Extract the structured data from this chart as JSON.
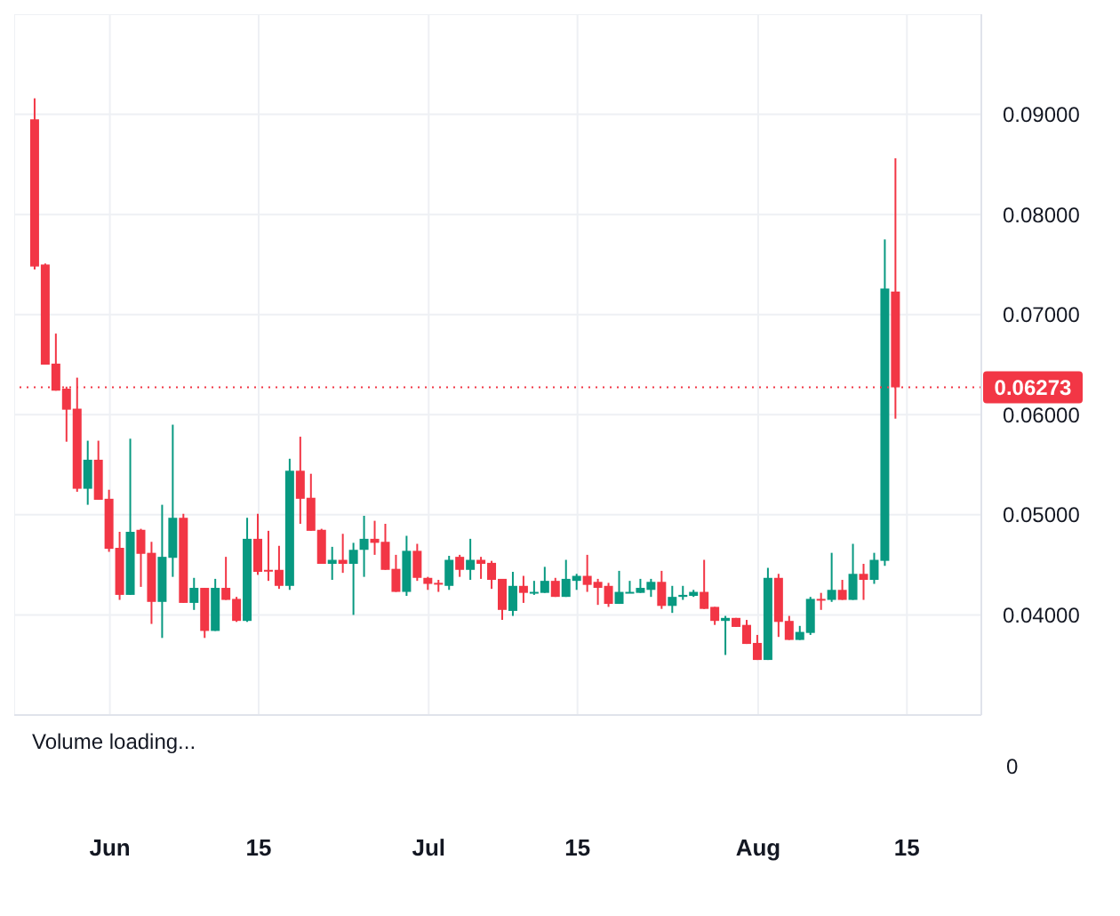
{
  "chart_data": {
    "type": "candlestick",
    "x": [
      "--05-25",
      "--05-26",
      "--05-27",
      "--05-28",
      "--05-29",
      "--05-30",
      "--05-31",
      "--06-01",
      "--06-02",
      "--06-03",
      "--06-04",
      "--06-05",
      "--06-06",
      "--06-07",
      "--06-08",
      "--06-09",
      "--06-10",
      "--06-11",
      "--06-12",
      "--06-13",
      "--06-14",
      "--06-15",
      "--06-16",
      "--06-17",
      "--06-18",
      "--06-19",
      "--06-20",
      "--06-21",
      "--06-22",
      "--06-23",
      "--06-24",
      "--06-25",
      "--06-26",
      "--06-27",
      "--06-28",
      "--06-29",
      "--06-30",
      "--07-01",
      "--07-02",
      "--07-03",
      "--07-04",
      "--07-05",
      "--07-06",
      "--07-07",
      "--07-08",
      "--07-09",
      "--07-10",
      "--07-11",
      "--07-12",
      "--07-13",
      "--07-14",
      "--07-15",
      "--07-16",
      "--07-17",
      "--07-18",
      "--07-19",
      "--07-20",
      "--07-21",
      "--07-22",
      "--07-23",
      "--07-24",
      "--07-25",
      "--07-26",
      "--07-27",
      "--07-28",
      "--07-29",
      "--07-30",
      "--07-31",
      "--08-01",
      "--08-02",
      "--08-03",
      "--08-04",
      "--08-05",
      "--08-06",
      "--08-07",
      "--08-08",
      "--08-09",
      "--08-10",
      "--08-11",
      "--08-12",
      "--08-13",
      "--08-14"
    ],
    "ohlc": [
      [
        0.0895,
        0.0916,
        0.0745,
        0.0748
      ],
      [
        0.075,
        0.0751,
        0.065,
        0.065
      ],
      [
        0.0651,
        0.0681,
        0.0624,
        0.0624
      ],
      [
        0.0626,
        0.0628,
        0.0573,
        0.0605
      ],
      [
        0.0606,
        0.0637,
        0.0523,
        0.0526
      ],
      [
        0.0526,
        0.0574,
        0.051,
        0.0555
      ],
      [
        0.0555,
        0.0574,
        0.0515,
        0.0515
      ],
      [
        0.0516,
        0.0525,
        0.0463,
        0.0466
      ],
      [
        0.0467,
        0.0483,
        0.0415,
        0.042
      ],
      [
        0.042,
        0.0576,
        0.042,
        0.0483
      ],
      [
        0.0485,
        0.0486,
        0.0428,
        0.0461
      ],
      [
        0.0462,
        0.0473,
        0.0391,
        0.0413
      ],
      [
        0.0413,
        0.051,
        0.0377,
        0.0458
      ],
      [
        0.0457,
        0.059,
        0.0438,
        0.0497
      ],
      [
        0.0497,
        0.0501,
        0.0412,
        0.0412
      ],
      [
        0.0412,
        0.0437,
        0.0405,
        0.0427
      ],
      [
        0.0427,
        0.0427,
        0.0377,
        0.0384
      ],
      [
        0.0384,
        0.0436,
        0.0384,
        0.0427
      ],
      [
        0.0427,
        0.0458,
        0.0415,
        0.0415
      ],
      [
        0.0416,
        0.0418,
        0.0393,
        0.0394
      ],
      [
        0.0394,
        0.0497,
        0.0393,
        0.0476
      ],
      [
        0.0476,
        0.0501,
        0.044,
        0.0443
      ],
      [
        0.0445,
        0.0484,
        0.0434,
        0.0444
      ],
      [
        0.0445,
        0.0469,
        0.0426,
        0.0429
      ],
      [
        0.0429,
        0.0556,
        0.0425,
        0.0544
      ],
      [
        0.0544,
        0.0578,
        0.0491,
        0.0516
      ],
      [
        0.0517,
        0.0541,
        0.0484,
        0.0484
      ],
      [
        0.0485,
        0.0486,
        0.0451,
        0.0451
      ],
      [
        0.0451,
        0.0468,
        0.0435,
        0.0455
      ],
      [
        0.0455,
        0.0481,
        0.0442,
        0.0451
      ],
      [
        0.0451,
        0.0472,
        0.04,
        0.0465
      ],
      [
        0.0465,
        0.0499,
        0.0438,
        0.0476
      ],
      [
        0.0476,
        0.0494,
        0.046,
        0.0472
      ],
      [
        0.0473,
        0.0491,
        0.0445,
        0.0445
      ],
      [
        0.0446,
        0.046,
        0.0423,
        0.0423
      ],
      [
        0.0423,
        0.0479,
        0.0419,
        0.0464
      ],
      [
        0.0464,
        0.0471,
        0.0434,
        0.0437
      ],
      [
        0.0437,
        0.0438,
        0.0425,
        0.0431
      ],
      [
        0.0432,
        0.0435,
        0.0423,
        0.0431
      ],
      [
        0.0429,
        0.0459,
        0.0425,
        0.0455
      ],
      [
        0.0458,
        0.046,
        0.0438,
        0.0445
      ],
      [
        0.0445,
        0.0476,
        0.0435,
        0.0455
      ],
      [
        0.0455,
        0.0458,
        0.0436,
        0.0451
      ],
      [
        0.0452,
        0.0454,
        0.0426,
        0.0435
      ],
      [
        0.0436,
        0.0436,
        0.0395,
        0.0405
      ],
      [
        0.0404,
        0.0443,
        0.0399,
        0.0429
      ],
      [
        0.0429,
        0.0439,
        0.0412,
        0.0422
      ],
      [
        0.0422,
        0.0434,
        0.042,
        0.0423
      ],
      [
        0.0422,
        0.0448,
        0.0422,
        0.0434
      ],
      [
        0.0434,
        0.0437,
        0.0418,
        0.0418
      ],
      [
        0.0418,
        0.0455,
        0.0418,
        0.0436
      ],
      [
        0.0434,
        0.0441,
        0.0425,
        0.0439
      ],
      [
        0.0439,
        0.046,
        0.0423,
        0.043
      ],
      [
        0.0433,
        0.0436,
        0.041,
        0.0427
      ],
      [
        0.0429,
        0.0432,
        0.0408,
        0.0411
      ],
      [
        0.0411,
        0.0444,
        0.0411,
        0.0423
      ],
      [
        0.0422,
        0.0434,
        0.0422,
        0.0423
      ],
      [
        0.0422,
        0.0436,
        0.0422,
        0.0427
      ],
      [
        0.0425,
        0.0436,
        0.0418,
        0.0433
      ],
      [
        0.0433,
        0.0444,
        0.0406,
        0.0409
      ],
      [
        0.0409,
        0.0429,
        0.0402,
        0.0418
      ],
      [
        0.0418,
        0.0429,
        0.0415,
        0.042
      ],
      [
        0.0419,
        0.0425,
        0.0418,
        0.0423
      ],
      [
        0.0423,
        0.0455,
        0.0406,
        0.0406
      ],
      [
        0.0408,
        0.0408,
        0.039,
        0.0394
      ],
      [
        0.0394,
        0.0399,
        0.036,
        0.0397
      ],
      [
        0.0397,
        0.0397,
        0.0388,
        0.0388
      ],
      [
        0.039,
        0.0395,
        0.0371,
        0.0371
      ],
      [
        0.0372,
        0.038,
        0.0355,
        0.0355
      ],
      [
        0.0355,
        0.0447,
        0.0355,
        0.0437
      ],
      [
        0.0437,
        0.0441,
        0.0378,
        0.0393
      ],
      [
        0.0394,
        0.0399,
        0.0375,
        0.0375
      ],
      [
        0.0375,
        0.0389,
        0.0375,
        0.0383
      ],
      [
        0.0382,
        0.0418,
        0.038,
        0.0416
      ],
      [
        0.0416,
        0.0422,
        0.0405,
        0.0415
      ],
      [
        0.0415,
        0.0462,
        0.0413,
        0.0425
      ],
      [
        0.0425,
        0.0435,
        0.0415,
        0.0415
      ],
      [
        0.0415,
        0.0471,
        0.0415,
        0.0441
      ],
      [
        0.0441,
        0.0451,
        0.0415,
        0.0435
      ],
      [
        0.0435,
        0.0462,
        0.0431,
        0.0455
      ],
      [
        0.0454,
        0.0775,
        0.0449,
        0.0726
      ],
      [
        0.0723,
        0.0856,
        0.0596,
        0.06273
      ]
    ],
    "colors": [
      "#f23645",
      "#f23645",
      "#f23645",
      "#f23645",
      "#f23645",
      "#089981",
      "#f23645",
      "#f23645",
      "#f23645",
      "#089981",
      "#f23645",
      "#f23645",
      "#089981",
      "#089981",
      "#f23645",
      "#089981",
      "#f23645",
      "#089981",
      "#f23645",
      "#f23645",
      "#089981",
      "#f23645",
      "#f23645",
      "#f23645",
      "#089981",
      "#f23645",
      "#f23645",
      "#f23645",
      "#089981",
      "#f23645",
      "#089981",
      "#089981",
      "#f23645",
      "#f23645",
      "#f23645",
      "#089981",
      "#f23645",
      "#f23645",
      "#f23645",
      "#089981",
      "#f23645",
      "#089981",
      "#f23645",
      "#f23645",
      "#f23645",
      "#089981",
      "#f23645",
      "#089981",
      "#089981",
      "#f23645",
      "#089981",
      "#089981",
      "#f23645",
      "#f23645",
      "#f23645",
      "#089981",
      "#089981",
      "#089981",
      "#089981",
      "#f23645",
      "#089981",
      "#089981",
      "#089981",
      "#f23645",
      "#f23645",
      "#089981",
      "#f23645",
      "#f23645",
      "#f23645",
      "#089981",
      "#f23645",
      "#f23645",
      "#089981",
      "#089981",
      "#f23645",
      "#089981",
      "#f23645",
      "#089981",
      "#f23645",
      "#089981",
      "#089981",
      "#f23645"
    ],
    "xlim": [
      "--05-23",
      "--08-22"
    ],
    "xticks": [
      {
        "value": "--06-01",
        "label": "Jun"
      },
      {
        "value": "--06-15",
        "label": "15"
      },
      {
        "value": "--07-01",
        "label": "Jul"
      },
      {
        "value": "--07-15",
        "label": "15"
      },
      {
        "value": "--08-01",
        "label": "Aug"
      },
      {
        "value": "--08-15",
        "label": "15"
      }
    ],
    "ylim": [
      0.03,
      0.1
    ],
    "yticks": [
      {
        "value": 0.04,
        "label": "0.04000"
      },
      {
        "value": 0.05,
        "label": "0.05000"
      },
      {
        "value": 0.06,
        "label": "0.06000"
      },
      {
        "value": 0.07,
        "label": "0.07000"
      },
      {
        "value": 0.08,
        "label": "0.08000"
      },
      {
        "value": 0.09,
        "label": "0.09000"
      }
    ],
    "grid": true,
    "annotations": [
      "Volume loading...",
      "0"
    ],
    "ref_lines": [
      {
        "axis": "y",
        "value": 0.06273,
        "label": "0.06273",
        "color": "#f23645",
        "line_style": "dotted"
      }
    ]
  }
}
